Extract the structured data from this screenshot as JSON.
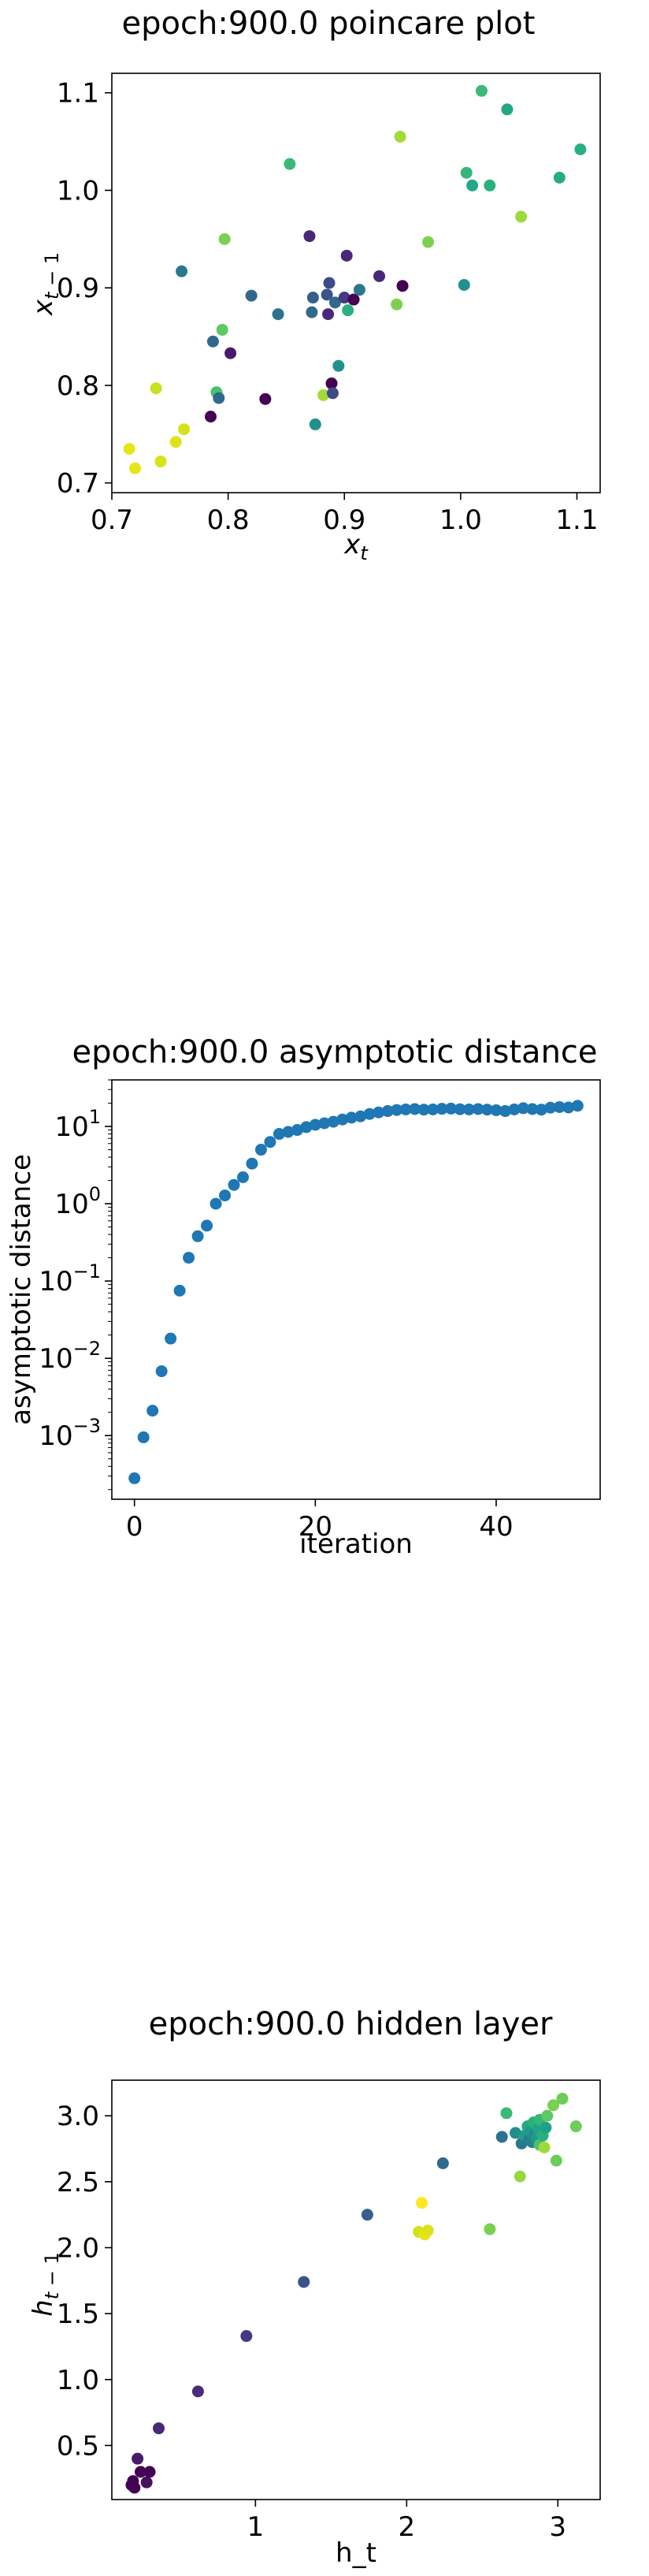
{
  "chart_data": [
    {
      "type": "scatter",
      "title": "epoch:900.0 poincare plot",
      "xlabel": "x_t",
      "ylabel": "x_{t-1}",
      "xlim": [
        0.7,
        1.12
      ],
      "ylim": [
        0.69,
        1.12
      ],
      "xticks": [
        "0.7",
        "0.8",
        "0.9",
        "1.0",
        "1.1"
      ],
      "yticks": [
        "0.7",
        "0.8",
        "0.9",
        "1.0",
        "1.1"
      ],
      "grid": false,
      "points": [
        {
          "x": 0.715,
          "y": 0.735,
          "c": "#e6e519"
        },
        {
          "x": 0.72,
          "y": 0.715,
          "c": "#e6e519"
        },
        {
          "x": 0.738,
          "y": 0.797,
          "c": "#c7e020"
        },
        {
          "x": 0.742,
          "y": 0.722,
          "c": "#d7e219"
        },
        {
          "x": 0.755,
          "y": 0.742,
          "c": "#dde318"
        },
        {
          "x": 0.762,
          "y": 0.755,
          "c": "#d2e21b"
        },
        {
          "x": 0.76,
          "y": 0.917,
          "c": "#2a788e"
        },
        {
          "x": 0.785,
          "y": 0.768,
          "c": "#440154"
        },
        {
          "x": 0.787,
          "y": 0.845,
          "c": "#30698e"
        },
        {
          "x": 0.79,
          "y": 0.793,
          "c": "#4ac16d"
        },
        {
          "x": 0.792,
          "y": 0.787,
          "c": "#31688e"
        },
        {
          "x": 0.795,
          "y": 0.857,
          "c": "#5ec962"
        },
        {
          "x": 0.797,
          "y": 0.95,
          "c": "#7ad151"
        },
        {
          "x": 0.802,
          "y": 0.833,
          "c": "#481a6c"
        },
        {
          "x": 0.82,
          "y": 0.892,
          "c": "#31688e"
        },
        {
          "x": 0.832,
          "y": 0.786,
          "c": "#440154"
        },
        {
          "x": 0.843,
          "y": 0.873,
          "c": "#2c728e"
        },
        {
          "x": 0.853,
          "y": 1.027,
          "c": "#3aba76"
        },
        {
          "x": 0.87,
          "y": 0.953,
          "c": "#482878"
        },
        {
          "x": 0.872,
          "y": 0.875,
          "c": "#31688e"
        },
        {
          "x": 0.873,
          "y": 0.89,
          "c": "#35608d"
        },
        {
          "x": 0.875,
          "y": 0.76,
          "c": "#21908d"
        },
        {
          "x": 0.882,
          "y": 0.79,
          "c": "#a5db36"
        },
        {
          "x": 0.885,
          "y": 0.893,
          "c": "#3b528b"
        },
        {
          "x": 0.886,
          "y": 0.873,
          "c": "#482878"
        },
        {
          "x": 0.887,
          "y": 0.905,
          "c": "#3e4a89"
        },
        {
          "x": 0.889,
          "y": 0.802,
          "c": "#440154"
        },
        {
          "x": 0.89,
          "y": 0.792,
          "c": "#3e4a89"
        },
        {
          "x": 0.892,
          "y": 0.885,
          "c": "#31688e"
        },
        {
          "x": 0.895,
          "y": 0.82,
          "c": "#21908d"
        },
        {
          "x": 0.9,
          "y": 0.89,
          "c": "#443983"
        },
        {
          "x": 0.902,
          "y": 0.933,
          "c": "#482878"
        },
        {
          "x": 0.903,
          "y": 0.877,
          "c": "#2ab07f"
        },
        {
          "x": 0.908,
          "y": 0.888,
          "c": "#440154"
        },
        {
          "x": 0.913,
          "y": 0.898,
          "c": "#2a788e"
        },
        {
          "x": 0.93,
          "y": 0.912,
          "c": "#482878"
        },
        {
          "x": 0.945,
          "y": 0.883,
          "c": "#7ad151"
        },
        {
          "x": 0.948,
          "y": 1.055,
          "c": "#a5db36"
        },
        {
          "x": 0.95,
          "y": 0.902,
          "c": "#440154"
        },
        {
          "x": 0.972,
          "y": 0.947,
          "c": "#7ad151"
        },
        {
          "x": 1.003,
          "y": 0.903,
          "c": "#21908d"
        },
        {
          "x": 1.005,
          "y": 1.018,
          "c": "#35b779"
        },
        {
          "x": 1.01,
          "y": 1.005,
          "c": "#22a884"
        },
        {
          "x": 1.018,
          "y": 1.102,
          "c": "#3aba76"
        },
        {
          "x": 1.025,
          "y": 1.005,
          "c": "#2ab07f"
        },
        {
          "x": 1.04,
          "y": 1.083,
          "c": "#22a884"
        },
        {
          "x": 1.052,
          "y": 0.973,
          "c": "#9bd93c"
        },
        {
          "x": 1.085,
          "y": 1.013,
          "c": "#25ac82"
        },
        {
          "x": 1.103,
          "y": 1.042,
          "c": "#2ab07f"
        }
      ]
    },
    {
      "type": "scatter",
      "title": "epoch:900.0 asymptotic distance",
      "xlabel": "iteration",
      "ylabel": "asymptotic distance",
      "yscale": "log",
      "xlim": [
        -2.5,
        51.5
      ],
      "ylim": [
        0.00015,
        40
      ],
      "xticks": [
        "0",
        "20",
        "40"
      ],
      "ytick_bases": [
        "10",
        "10",
        "10",
        "10",
        "10"
      ],
      "ytick_exps": [
        "1",
        "0",
        "−1",
        "−2",
        "−3"
      ],
      "grid": false,
      "color": "#1f77b4",
      "x": [
        0,
        1,
        2,
        3,
        4,
        5,
        6,
        7,
        8,
        9,
        10,
        11,
        12,
        13,
        14,
        15,
        16,
        17,
        18,
        19,
        20,
        21,
        22,
        23,
        24,
        25,
        26,
        27,
        28,
        29,
        30,
        31,
        32,
        33,
        34,
        35,
        36,
        37,
        38,
        39,
        40,
        41,
        42,
        43,
        44,
        45,
        46,
        47,
        48,
        49
      ],
      "y": [
        0.00028,
        0.00095,
        0.0021,
        0.0068,
        0.018,
        0.075,
        0.2,
        0.38,
        0.52,
        1.0,
        1.28,
        1.75,
        2.2,
        3.3,
        5.0,
        6.3,
        8.0,
        8.5,
        9.0,
        9.8,
        10.5,
        11.0,
        11.5,
        12.3,
        13.0,
        13.5,
        14.5,
        15.2,
        15.8,
        16.3,
        16.6,
        16.8,
        16.5,
        16.6,
        16.9,
        17.0,
        16.7,
        16.6,
        16.8,
        16.5,
        16.2,
        15.8,
        16.6,
        17.2,
        16.8,
        16.5,
        17.5,
        17.8,
        17.6,
        18.5
      ]
    },
    {
      "type": "scatter",
      "title": "epoch:900.0 hidden layer",
      "xlabel": "h_t",
      "ylabel": "h_{t-1}",
      "xlim": [
        0.05,
        3.28
      ],
      "ylim": [
        0.09,
        3.27
      ],
      "xticks": [
        "1",
        "2",
        "3"
      ],
      "yticks": [
        "0.5",
        "1.0",
        "1.5",
        "2.0",
        "2.5",
        "3.0"
      ],
      "grid": false,
      "points": [
        {
          "x": 0.18,
          "y": 0.2,
          "c": "#440154"
        },
        {
          "x": 0.19,
          "y": 0.23,
          "c": "#440154"
        },
        {
          "x": 0.2,
          "y": 0.18,
          "c": "#440154"
        },
        {
          "x": 0.22,
          "y": 0.4,
          "c": "#481a6c"
        },
        {
          "x": 0.24,
          "y": 0.3,
          "c": "#440154"
        },
        {
          "x": 0.28,
          "y": 0.22,
          "c": "#470e61"
        },
        {
          "x": 0.3,
          "y": 0.3,
          "c": "#440154"
        },
        {
          "x": 0.36,
          "y": 0.63,
          "c": "#482878"
        },
        {
          "x": 0.62,
          "y": 0.91,
          "c": "#472d7b"
        },
        {
          "x": 0.94,
          "y": 1.33,
          "c": "#443983"
        },
        {
          "x": 1.32,
          "y": 1.74,
          "c": "#3b528b"
        },
        {
          "x": 1.74,
          "y": 2.25,
          "c": "#35608d"
        },
        {
          "x": 2.08,
          "y": 2.12,
          "c": "#d2e21b"
        },
        {
          "x": 2.1,
          "y": 2.34,
          "c": "#fde725"
        },
        {
          "x": 2.12,
          "y": 2.1,
          "c": "#e5e419"
        },
        {
          "x": 2.14,
          "y": 2.13,
          "c": "#dde318"
        },
        {
          "x": 2.24,
          "y": 2.64,
          "c": "#31688e"
        },
        {
          "x": 2.55,
          "y": 2.14,
          "c": "#7ad151"
        },
        {
          "x": 2.63,
          "y": 2.84,
          "c": "#2c728e"
        },
        {
          "x": 2.66,
          "y": 3.02,
          "c": "#3aba76"
        },
        {
          "x": 2.72,
          "y": 2.87,
          "c": "#21908d"
        },
        {
          "x": 2.75,
          "y": 2.54,
          "c": "#95d840"
        },
        {
          "x": 2.76,
          "y": 2.79,
          "c": "#2a788e"
        },
        {
          "x": 2.78,
          "y": 2.85,
          "c": "#1f9e89"
        },
        {
          "x": 2.8,
          "y": 2.92,
          "c": "#22a884"
        },
        {
          "x": 2.81,
          "y": 2.82,
          "c": "#287d8e"
        },
        {
          "x": 2.82,
          "y": 2.88,
          "c": "#1f988b"
        },
        {
          "x": 2.83,
          "y": 2.8,
          "c": "#26828e"
        },
        {
          "x": 2.84,
          "y": 2.95,
          "c": "#2ab07f"
        },
        {
          "x": 2.85,
          "y": 2.86,
          "c": "#23898e"
        },
        {
          "x": 2.86,
          "y": 2.83,
          "c": "#1f9a8a"
        },
        {
          "x": 2.87,
          "y": 2.9,
          "c": "#20a486"
        },
        {
          "x": 2.88,
          "y": 2.78,
          "c": "#4ac16d"
        },
        {
          "x": 2.88,
          "y": 2.97,
          "c": "#35b779"
        },
        {
          "x": 2.9,
          "y": 2.85,
          "c": "#2ab07f"
        },
        {
          "x": 2.91,
          "y": 2.76,
          "c": "#a0da39"
        },
        {
          "x": 2.92,
          "y": 2.91,
          "c": "#1fa188"
        },
        {
          "x": 2.93,
          "y": 3.0,
          "c": "#5ec962"
        },
        {
          "x": 2.97,
          "y": 3.08,
          "c": "#7ad151"
        },
        {
          "x": 2.99,
          "y": 2.66,
          "c": "#6ccd5a"
        },
        {
          "x": 3.03,
          "y": 3.13,
          "c": "#6ccd5a"
        },
        {
          "x": 3.12,
          "y": 2.92,
          "c": "#6ccd5a"
        }
      ]
    }
  ]
}
